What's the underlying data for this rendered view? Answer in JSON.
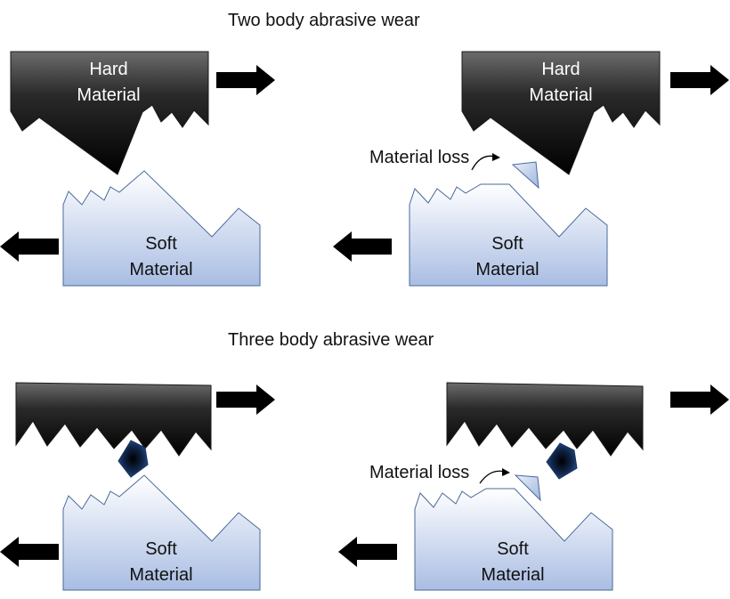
{
  "two_body": {
    "title": "Two body abrasive wear",
    "hard_line1": "Hard",
    "hard_line2": "Material",
    "soft_line1": "Soft",
    "soft_line2": "Material",
    "material_loss": "Material loss"
  },
  "three_body": {
    "title": "Three body abrasive wear",
    "soft_line1": "Soft",
    "soft_line2": "Material",
    "material_loss": "Material loss"
  },
  "colors": {
    "hard_top": "#6b6b6b",
    "hard_bottom": "#000000",
    "soft_top": "#ffffff",
    "soft_bottom": "#a9bde3",
    "particle_center": "#000000",
    "particle_edge": "#2f5597"
  }
}
